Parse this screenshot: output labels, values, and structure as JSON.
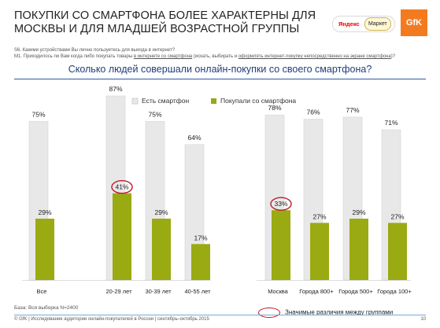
{
  "title": {
    "line1": "ПОКУПКИ СО СМАРТФОНА БОЛЕЕ ХАРАКТЕРНЫ ДЛЯ",
    "line2": "МОСКВЫ И ДЛЯ МЛАДШЕЙ ВОЗРАСТНОЙ ГРУППЫ"
  },
  "logos": {
    "yandex": "Яндекс",
    "market": "Маркет",
    "gfk": "GfK"
  },
  "questions": {
    "s6": "S6. Какими устройствами Вы лично пользуетесь для выхода в интернет?",
    "m1_pre": "M1. Приходилось ли Вам когда либо покупать товары ",
    "m1_u1": "в интернете со смартфона",
    "m1_mid": " (искать, выбирать и ",
    "m1_u2": "оформлять интернет-покупку непосредственно на экране смартфона",
    "m1_end": ")?"
  },
  "subtitle": "Сколько людей совершали онлайн-покупки со своего смартфона?",
  "colors": {
    "has": "#e8e8e8",
    "bought": "#9aaa12",
    "circle": "#c0182a",
    "accent": "#2a5aa8"
  },
  "chart_data": {
    "type": "bar",
    "legend_position": "top",
    "categories": [
      "Все",
      "20-29 лет",
      "30-39 лет",
      "40-55 лет",
      "Москва",
      "Города 800+",
      "Города 500+",
      "Города 100+"
    ],
    "series": [
      {
        "name": "Есть смартфон",
        "values": [
          75,
          87,
          75,
          64,
          78,
          76,
          77,
          71
        ]
      },
      {
        "name": "Покупали со смартфона",
        "values": [
          29,
          41,
          29,
          17,
          33,
          27,
          29,
          27
        ]
      }
    ],
    "highlighted": [
      "20-29 лет",
      "Москва"
    ],
    "ylim": [
      0,
      100
    ]
  },
  "footer": {
    "base": "База: Вся выборка N=2400",
    "copyright": "© GfK | Исследование аудитории онлайн-покупателей в России | сентябрь–октябрь 2015",
    "page": "10",
    "significance": "Значимые различия между группами"
  }
}
